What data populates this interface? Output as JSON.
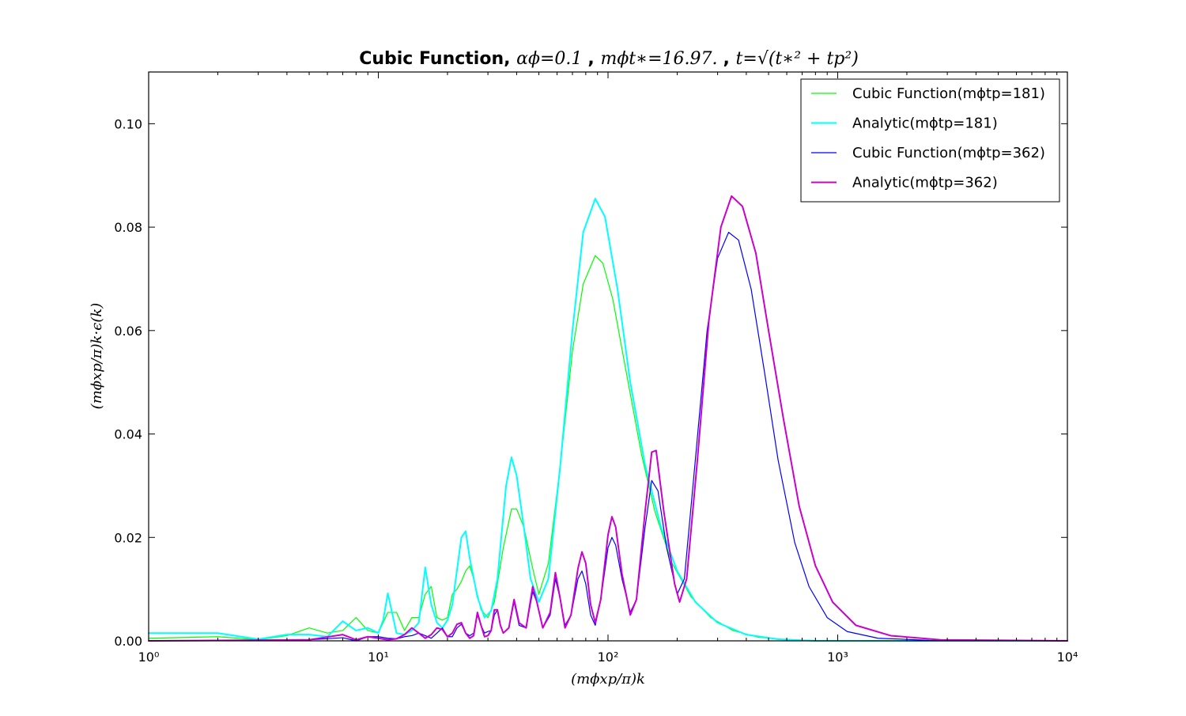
{
  "chart_data": {
    "type": "line",
    "title": {
      "prefix": "Cubic Function, ",
      "param1": "αϕ=0.1",
      "sep1": ", ",
      "param2": "mϕt∗=16.97.",
      "sep2": ", ",
      "param3": "t=√(t∗² + tp²)"
    },
    "xlabel": "(mϕxp/π)k",
    "ylabel": "(mϕxp/π)k·ϵ(k)",
    "x_scale": "log",
    "xlim": [
      1,
      10000
    ],
    "ylim": [
      0,
      0.11
    ],
    "x_ticks": [
      {
        "value": 1,
        "label": "10⁰"
      },
      {
        "value": 10,
        "label": "10¹"
      },
      {
        "value": 100,
        "label": "10²"
      },
      {
        "value": 1000,
        "label": "10³"
      },
      {
        "value": 10000,
        "label": "10⁴"
      }
    ],
    "y_ticks": [
      {
        "value": 0.0,
        "label": "0.00"
      },
      {
        "value": 0.02,
        "label": "0.02"
      },
      {
        "value": 0.04,
        "label": "0.04"
      },
      {
        "value": 0.06,
        "label": "0.06"
      },
      {
        "value": 0.08,
        "label": "0.08"
      },
      {
        "value": 0.1,
        "label": "0.10"
      }
    ],
    "grid": false,
    "legend_position": "top-right",
    "series": [
      {
        "name": "Cubic Function(mϕtp=181)",
        "color": "#00ff00",
        "width": 1.2,
        "points": [
          [
            1,
            0.0005
          ],
          [
            2,
            0.0008
          ],
          [
            3,
            0.0002
          ],
          [
            4,
            0.001
          ],
          [
            5,
            0.0025
          ],
          [
            6,
            0.0015
          ],
          [
            7,
            0.002
          ],
          [
            8,
            0.0045
          ],
          [
            9,
            0.002
          ],
          [
            10,
            0.0015
          ],
          [
            11,
            0.0055
          ],
          [
            12,
            0.0055
          ],
          [
            13,
            0.002
          ],
          [
            14,
            0.0045
          ],
          [
            15,
            0.0045
          ],
          [
            16,
            0.009
          ],
          [
            17,
            0.0105
          ],
          [
            18,
            0.0045
          ],
          [
            19,
            0.004
          ],
          [
            20,
            0.0045
          ],
          [
            21,
            0.009
          ],
          [
            22,
            0.01
          ],
          [
            23,
            0.0115
          ],
          [
            24,
            0.0135
          ],
          [
            25,
            0.0145
          ],
          [
            26,
            0.012
          ],
          [
            28,
            0.006
          ],
          [
            30,
            0.0045
          ],
          [
            32,
            0.0075
          ],
          [
            35,
            0.018
          ],
          [
            38,
            0.0255
          ],
          [
            40,
            0.0255
          ],
          [
            43,
            0.022
          ],
          [
            47,
            0.014
          ],
          [
            50,
            0.009
          ],
          [
            55,
            0.015
          ],
          [
            62,
            0.034
          ],
          [
            70,
            0.056
          ],
          [
            78,
            0.069
          ],
          [
            88,
            0.0745
          ],
          [
            95,
            0.073
          ],
          [
            105,
            0.066
          ],
          [
            120,
            0.052
          ],
          [
            140,
            0.036
          ],
          [
            160,
            0.025
          ],
          [
            190,
            0.015
          ],
          [
            230,
            0.0085
          ],
          [
            280,
            0.0045
          ],
          [
            350,
            0.002
          ],
          [
            450,
            0.0007
          ],
          [
            600,
            0.0002
          ],
          [
            900,
            0.0
          ],
          [
            10000,
            0.0
          ]
        ]
      },
      {
        "name": "Analytic(mϕtp=181)",
        "color": "#00ffff",
        "width": 2,
        "points": [
          [
            1,
            0.0015
          ],
          [
            2,
            0.0015
          ],
          [
            3,
            0.0003
          ],
          [
            4,
            0.0012
          ],
          [
            5,
            0.0012
          ],
          [
            6,
            0.0008
          ],
          [
            7,
            0.0038
          ],
          [
            8,
            0.002
          ],
          [
            9,
            0.0025
          ],
          [
            10,
            0.0015
          ],
          [
            10.5,
            0.004
          ],
          [
            11,
            0.0092
          ],
          [
            11.6,
            0.0045
          ],
          [
            12,
            0.0015
          ],
          [
            13,
            0.0012
          ],
          [
            14,
            0.002
          ],
          [
            15,
            0.0035
          ],
          [
            16,
            0.0142
          ],
          [
            17,
            0.007
          ],
          [
            18,
            0.0035
          ],
          [
            19,
            0.0025
          ],
          [
            20,
            0.004
          ],
          [
            21,
            0.007
          ],
          [
            23,
            0.02
          ],
          [
            24,
            0.0212
          ],
          [
            25,
            0.016
          ],
          [
            27,
            0.0085
          ],
          [
            29,
            0.0045
          ],
          [
            31,
            0.0058
          ],
          [
            33,
            0.012
          ],
          [
            36,
            0.03
          ],
          [
            38,
            0.0355
          ],
          [
            40,
            0.032
          ],
          [
            43,
            0.022
          ],
          [
            46,
            0.012
          ],
          [
            50,
            0.0075
          ],
          [
            55,
            0.012
          ],
          [
            62,
            0.034
          ],
          [
            70,
            0.06
          ],
          [
            78,
            0.079
          ],
          [
            88,
            0.0855
          ],
          [
            97,
            0.082
          ],
          [
            110,
            0.068
          ],
          [
            125,
            0.05
          ],
          [
            145,
            0.034
          ],
          [
            170,
            0.022
          ],
          [
            200,
            0.0135
          ],
          [
            240,
            0.0075
          ],
          [
            300,
            0.0035
          ],
          [
            400,
            0.0012
          ],
          [
            550,
            0.0003
          ],
          [
            800,
            0.0
          ],
          [
            10000,
            0.0
          ]
        ]
      },
      {
        "name": "Cubic Function(mϕtp=362)",
        "color": "#0000ff",
        "width": 1.2,
        "points": [
          [
            1,
            0.0
          ],
          [
            5,
            0.0002
          ],
          [
            7,
            0.0006
          ],
          [
            8,
            0.0
          ],
          [
            9,
            0.0008
          ],
          [
            10,
            0.0008
          ],
          [
            11,
            0.0005
          ],
          [
            12,
            0.0004
          ],
          [
            13,
            0.0008
          ],
          [
            14,
            0.001
          ],
          [
            15,
            0.0015
          ],
          [
            16,
            0.001
          ],
          [
            17,
            0.0005
          ],
          [
            18,
            0.0015
          ],
          [
            19,
            0.0025
          ],
          [
            20,
            0.0008
          ],
          [
            21,
            0.0008
          ],
          [
            22,
            0.0025
          ],
          [
            23,
            0.0032
          ],
          [
            24,
            0.0015
          ],
          [
            25,
            0.001
          ],
          [
            26,
            0.0015
          ],
          [
            27,
            0.005
          ],
          [
            28,
            0.003
          ],
          [
            29,
            0.0015
          ],
          [
            30,
            0.0018
          ],
          [
            31,
            0.002
          ],
          [
            32,
            0.005
          ],
          [
            33,
            0.006
          ],
          [
            34,
            0.003
          ],
          [
            35,
            0.0015
          ],
          [
            37,
            0.0025
          ],
          [
            39,
            0.0075
          ],
          [
            41,
            0.003
          ],
          [
            44,
            0.0025
          ],
          [
            47,
            0.0095
          ],
          [
            49,
            0.0075
          ],
          [
            52,
            0.0025
          ],
          [
            56,
            0.005
          ],
          [
            59,
            0.012
          ],
          [
            62,
            0.008
          ],
          [
            65,
            0.003
          ],
          [
            69,
            0.005
          ],
          [
            74,
            0.012
          ],
          [
            77,
            0.0135
          ],
          [
            80,
            0.011
          ],
          [
            84,
            0.005
          ],
          [
            88,
            0.003
          ],
          [
            93,
            0.008
          ],
          [
            100,
            0.018
          ],
          [
            104,
            0.02
          ],
          [
            108,
            0.0185
          ],
          [
            115,
            0.012
          ],
          [
            125,
            0.0055
          ],
          [
            133,
            0.008
          ],
          [
            145,
            0.022
          ],
          [
            155,
            0.031
          ],
          [
            165,
            0.029
          ],
          [
            180,
            0.018
          ],
          [
            200,
            0.009
          ],
          [
            215,
            0.012
          ],
          [
            240,
            0.035
          ],
          [
            270,
            0.06
          ],
          [
            300,
            0.074
          ],
          [
            335,
            0.079
          ],
          [
            370,
            0.0775
          ],
          [
            420,
            0.068
          ],
          [
            480,
            0.052
          ],
          [
            550,
            0.035
          ],
          [
            650,
            0.019
          ],
          [
            750,
            0.0105
          ],
          [
            900,
            0.0045
          ],
          [
            1100,
            0.0018
          ],
          [
            1500,
            0.0005
          ],
          [
            2500,
            0.0001
          ],
          [
            10000,
            0.0
          ]
        ]
      },
      {
        "name": "Analytic(mϕtp=362)",
        "color": "#cc00cc",
        "width": 2,
        "points": [
          [
            1,
            0.0
          ],
          [
            5,
            0.0002
          ],
          [
            7,
            0.0012
          ],
          [
            8,
            0.0002
          ],
          [
            9,
            0.0008
          ],
          [
            10,
            0.0005
          ],
          [
            11,
            0.0002
          ],
          [
            12,
            0.0004
          ],
          [
            13,
            0.0012
          ],
          [
            14,
            0.0025
          ],
          [
            15,
            0.0015
          ],
          [
            16,
            0.0005
          ],
          [
            17,
            0.0012
          ],
          [
            18,
            0.0025
          ],
          [
            19,
            0.0022
          ],
          [
            20,
            0.0008
          ],
          [
            21,
            0.0015
          ],
          [
            22,
            0.0032
          ],
          [
            23,
            0.0035
          ],
          [
            24,
            0.0015
          ],
          [
            25,
            0.0005
          ],
          [
            26,
            0.001
          ],
          [
            27,
            0.0055
          ],
          [
            28,
            0.003
          ],
          [
            29,
            0.0008
          ],
          [
            30,
            0.001
          ],
          [
            31,
            0.002
          ],
          [
            32,
            0.006
          ],
          [
            33,
            0.006
          ],
          [
            34,
            0.003
          ],
          [
            35,
            0.0015
          ],
          [
            37,
            0.0025
          ],
          [
            39,
            0.008
          ],
          [
            41,
            0.0035
          ],
          [
            44,
            0.0025
          ],
          [
            47,
            0.0105
          ],
          [
            49,
            0.0075
          ],
          [
            52,
            0.0025
          ],
          [
            56,
            0.0055
          ],
          [
            59,
            0.0132
          ],
          [
            62,
            0.008
          ],
          [
            65,
            0.0025
          ],
          [
            69,
            0.005
          ],
          [
            74,
            0.014
          ],
          [
            77,
            0.0172
          ],
          [
            80,
            0.015
          ],
          [
            84,
            0.007
          ],
          [
            88,
            0.0035
          ],
          [
            93,
            0.008
          ],
          [
            100,
            0.0205
          ],
          [
            104,
            0.024
          ],
          [
            108,
            0.022
          ],
          [
            115,
            0.013
          ],
          [
            125,
            0.005
          ],
          [
            133,
            0.008
          ],
          [
            145,
            0.025
          ],
          [
            155,
            0.0365
          ],
          [
            162,
            0.0368
          ],
          [
            175,
            0.025
          ],
          [
            195,
            0.011
          ],
          [
            205,
            0.0075
          ],
          [
            220,
            0.012
          ],
          [
            245,
            0.035
          ],
          [
            275,
            0.062
          ],
          [
            310,
            0.08
          ],
          [
            345,
            0.086
          ],
          [
            385,
            0.084
          ],
          [
            440,
            0.075
          ],
          [
            500,
            0.06
          ],
          [
            580,
            0.043
          ],
          [
            680,
            0.026
          ],
          [
            800,
            0.0145
          ],
          [
            950,
            0.0075
          ],
          [
            1200,
            0.003
          ],
          [
            1700,
            0.001
          ],
          [
            2800,
            0.0002
          ],
          [
            10000,
            0.0
          ]
        ]
      }
    ]
  }
}
